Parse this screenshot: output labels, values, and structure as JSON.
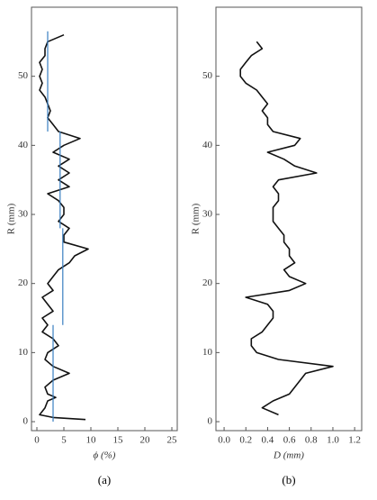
{
  "chart_data": [
    {
      "type": "line",
      "label": "(a)",
      "xlabel": "ϕ (%)",
      "ylabel": "R (mm)",
      "xlim": [
        -1,
        26
      ],
      "ylim": [
        -1.3,
        60
      ],
      "xticks": [
        0,
        5,
        10,
        15,
        20,
        25
      ],
      "yticks": [
        0,
        10,
        20,
        30,
        40,
        50
      ],
      "series": [
        {
          "color": "#111111",
          "y": [
            0.3,
            0.6,
            1,
            2,
            3,
            3.5,
            4,
            5,
            6,
            7,
            8,
            9,
            10,
            11,
            12,
            13,
            14,
            15,
            16,
            17,
            18,
            19,
            20,
            21,
            22,
            23,
            24,
            25,
            26,
            27,
            28,
            29,
            30,
            31,
            32,
            33,
            34,
            35,
            36,
            37,
            38,
            39,
            40,
            41,
            42,
            43,
            44,
            45,
            46,
            47,
            48,
            49,
            50,
            51,
            52,
            53,
            54,
            55,
            56
          ],
          "values": [
            9,
            3,
            0.5,
            1.5,
            2,
            3.5,
            2,
            1.5,
            3,
            6,
            3,
            1.5,
            2,
            4,
            3,
            1,
            2,
            1,
            3,
            2,
            1,
            3,
            2,
            3,
            4,
            6,
            7,
            9.5,
            5,
            5,
            6,
            4,
            5,
            5,
            4,
            2,
            6,
            4,
            6,
            4,
            6,
            3,
            5,
            8,
            4,
            3,
            2,
            2.5,
            2,
            1.5,
            0.5,
            1,
            0.5,
            1,
            0.5,
            1.5,
            1.5,
            2,
            5
          ]
        },
        {
          "color": "#3a7fc1",
          "y": [
            0,
            14,
            null,
            14,
            28,
            null,
            28,
            42,
            null,
            42,
            56.5
          ],
          "values": [
            3,
            3,
            null,
            4.8,
            4.8,
            null,
            4.3,
            4.3,
            null,
            2,
            2
          ]
        }
      ]
    },
    {
      "type": "line",
      "label": "(b)",
      "xlabel": "D (mm)",
      "ylabel": "R (mm)",
      "xlim": [
        -0.075,
        1.265
      ],
      "ylim": [
        -1.3,
        60
      ],
      "xticks": [
        {
          "value": 0,
          "label": "0.0"
        },
        0.2,
        0.4,
        0.6,
        0.8,
        {
          "value": 1,
          "label": "1.0"
        },
        1.2
      ],
      "yticks": [
        0,
        10,
        20,
        30,
        40,
        50
      ],
      "series": [
        {
          "color": "#111111",
          "y": [
            1,
            2,
            3,
            4,
            5,
            6,
            7,
            8,
            9,
            10,
            11,
            12,
            13,
            14,
            15,
            16,
            17,
            18,
            19,
            20,
            21,
            22,
            23,
            24,
            25,
            26,
            27,
            28,
            29,
            30,
            31,
            32,
            33,
            34,
            35,
            36,
            37,
            38,
            39,
            40,
            41,
            42,
            43,
            44,
            45,
            46,
            47,
            48,
            49,
            50,
            51,
            52,
            53,
            54,
            55
          ],
          "values": [
            0.5,
            0.35,
            0.45,
            0.6,
            0.65,
            0.7,
            0.75,
            1.0,
            0.5,
            0.3,
            0.25,
            0.25,
            0.35,
            0.4,
            0.45,
            0.45,
            0.4,
            0.2,
            0.6,
            0.75,
            0.6,
            0.55,
            0.65,
            0.6,
            0.6,
            0.55,
            0.55,
            0.5,
            0.45,
            0.45,
            0.45,
            0.5,
            0.5,
            0.45,
            0.5,
            0.85,
            0.65,
            0.55,
            0.4,
            0.65,
            0.7,
            0.45,
            0.4,
            0.4,
            0.35,
            0.4,
            0.35,
            0.3,
            0.2,
            0.15,
            0.15,
            0.2,
            0.25,
            0.35,
            0.3
          ]
        }
      ]
    }
  ]
}
